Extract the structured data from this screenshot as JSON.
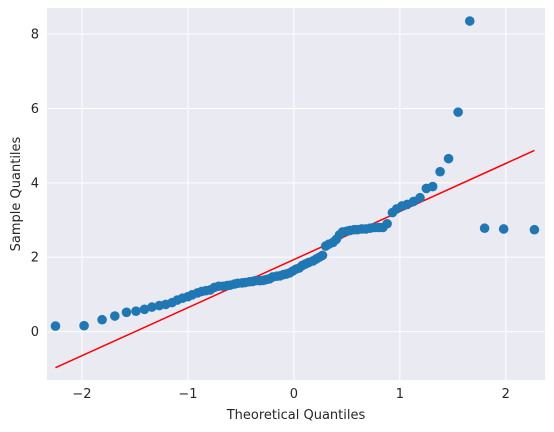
{
  "chart_data": {
    "type": "scatter",
    "title": "",
    "xlabel": "Theoretical Quantiles",
    "ylabel": "Sample Quantiles",
    "xlim": [
      -2.33,
      2.37
    ],
    "ylim": [
      -1.3,
      8.7
    ],
    "grid": true,
    "x_ticks": [
      -2,
      -1,
      0,
      1,
      2
    ],
    "x_tick_labels": [
      "−2",
      "−1",
      "0",
      "1",
      "2"
    ],
    "y_ticks": [
      0,
      2,
      4,
      6,
      8
    ],
    "y_tick_labels": [
      "0",
      "2",
      "4",
      "6",
      "8"
    ],
    "colors": {
      "background": "#eaeaf2",
      "grid": "#ffffff",
      "points": "#1f77b4",
      "reference_line": "#ff0000"
    },
    "reference_line": {
      "x": [
        -2.25,
        2.27
      ],
      "y": [
        -0.97,
        4.87
      ]
    },
    "series": [
      {
        "x": [
          -2.25,
          -1.98,
          -1.81,
          -1.69,
          -1.58,
          -1.49,
          -1.41,
          -1.34,
          -1.27,
          -1.21,
          -1.15,
          -1.1,
          -1.05,
          -1.0,
          -0.96,
          -0.91,
          -0.87,
          -0.83,
          -0.79,
          -0.75,
          -0.71,
          -0.67,
          -0.63,
          -0.6,
          -0.56,
          -0.53,
          -0.49,
          -0.46,
          -0.42,
          -0.39,
          -0.36,
          -0.32,
          -0.29,
          -0.26,
          -0.23,
          -0.2,
          -0.16,
          -0.13,
          -0.1,
          -0.07,
          -0.04,
          -0.01,
          0.02,
          0.05,
          0.08,
          0.11,
          0.14,
          0.18,
          0.21,
          0.24,
          0.27,
          0.3,
          0.33,
          0.37,
          0.4,
          0.43,
          0.46,
          0.5,
          0.53,
          0.57,
          0.6,
          0.64,
          0.68,
          0.72,
          0.76,
          0.8,
          0.84,
          0.88,
          0.93,
          0.97,
          1.02,
          1.07,
          1.13,
          1.19,
          1.25,
          1.31,
          1.38,
          1.46,
          1.55,
          1.66,
          1.8,
          1.98,
          2.27
        ],
        "y": [
          0.15,
          0.16,
          0.32,
          0.42,
          0.52,
          0.55,
          0.6,
          0.66,
          0.7,
          0.73,
          0.78,
          0.85,
          0.9,
          0.94,
          0.99,
          1.04,
          1.08,
          1.1,
          1.12,
          1.19,
          1.22,
          1.22,
          1.24,
          1.25,
          1.28,
          1.3,
          1.31,
          1.32,
          1.34,
          1.35,
          1.37,
          1.37,
          1.38,
          1.4,
          1.42,
          1.47,
          1.49,
          1.5,
          1.53,
          1.55,
          1.58,
          1.63,
          1.68,
          1.71,
          1.78,
          1.82,
          1.86,
          1.9,
          1.95,
          2.0,
          2.05,
          2.3,
          2.35,
          2.4,
          2.48,
          2.6,
          2.68,
          2.7,
          2.72,
          2.74,
          2.74,
          2.76,
          2.76,
          2.78,
          2.8,
          2.8,
          2.8,
          2.9,
          3.2,
          3.3,
          3.38,
          3.42,
          3.5,
          3.6,
          3.85,
          3.9,
          4.3,
          4.65,
          5.9,
          8.35,
          2.78,
          2.76,
          2.74
        ],
        "color": "#1f77b4"
      }
    ]
  }
}
